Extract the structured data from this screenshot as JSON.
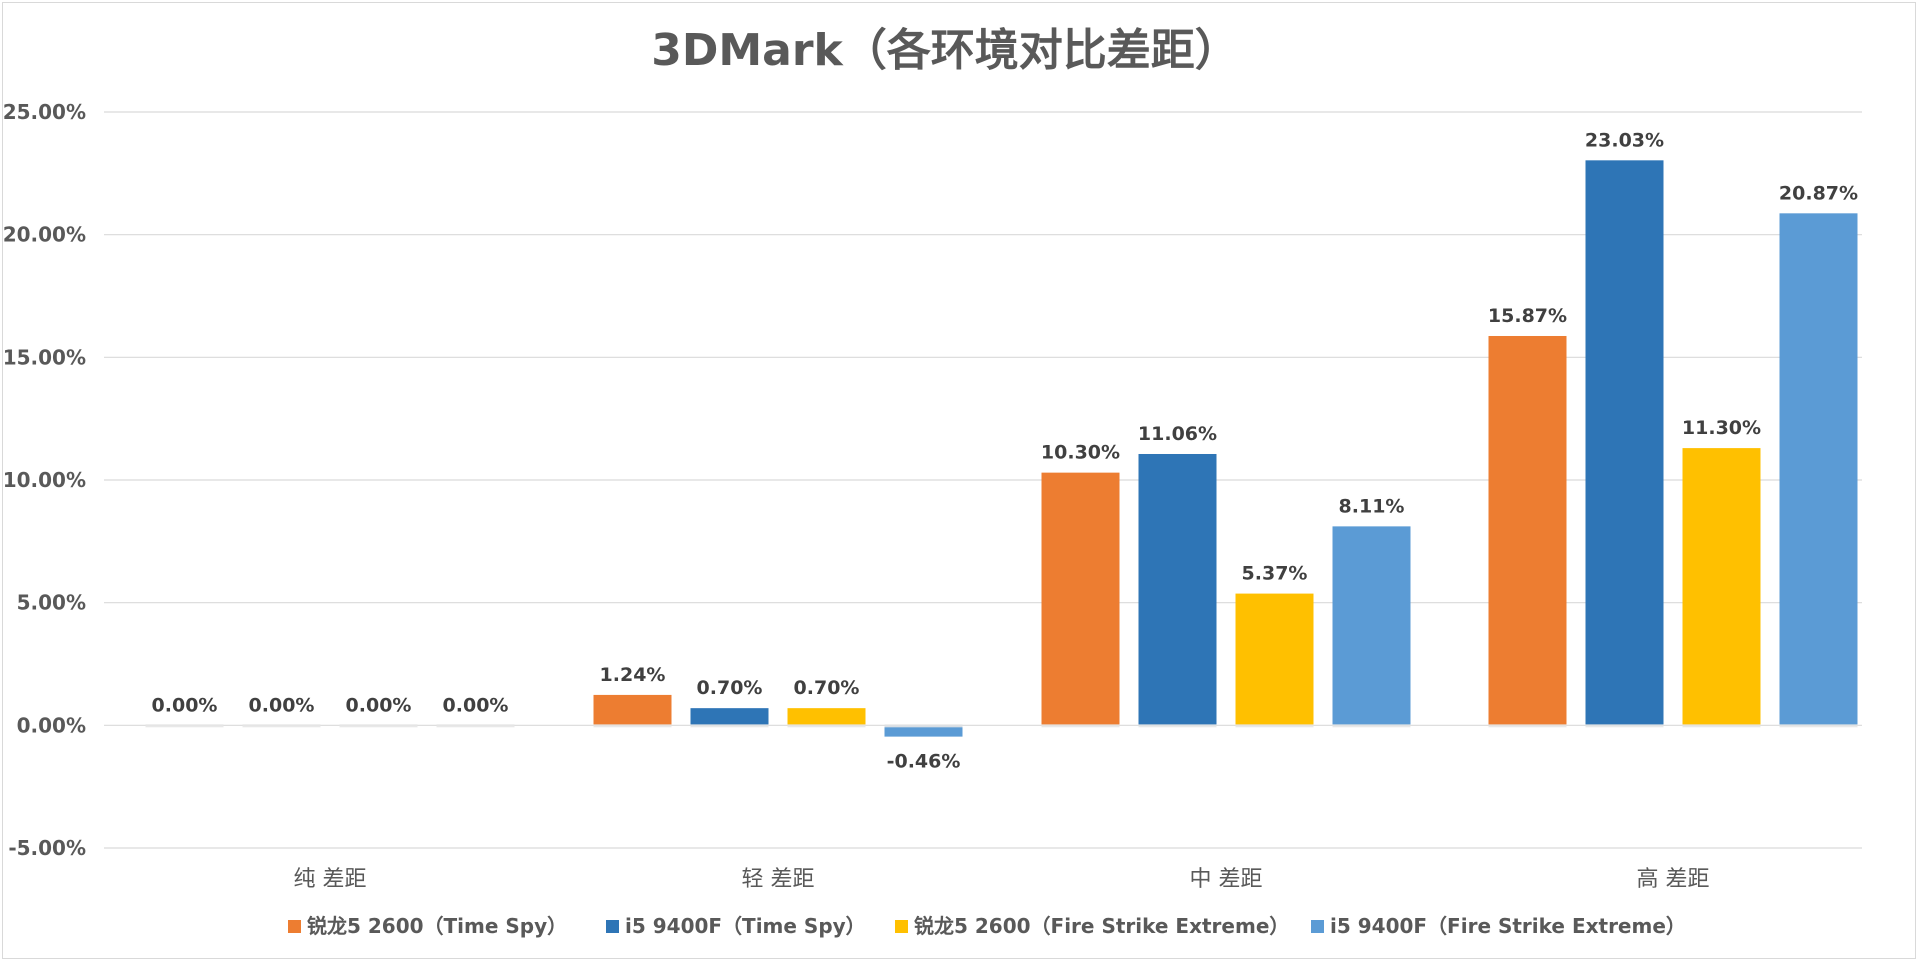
{
  "chart_data": {
    "type": "bar",
    "title": "3DMark（各环境对比差距）",
    "xlabel": "",
    "ylabel": "",
    "categories": [
      "纯 差距",
      "轻 差距",
      "中 差距",
      "高 差距"
    ],
    "series": [
      {
        "name": "锐龙5 2600（Time Spy）",
        "color": "#ED7D31",
        "values": [
          0.0,
          1.24,
          10.3,
          15.87
        ],
        "labels": [
          "0.00%",
          "1.24%",
          "10.30%",
          "15.87%"
        ]
      },
      {
        "name": "i5 9400F（Time Spy）",
        "color": "#2E75B6",
        "values": [
          0.0,
          0.7,
          11.06,
          23.03
        ],
        "labels": [
          "0.00%",
          "0.70%",
          "11.06%",
          "23.03%"
        ]
      },
      {
        "name": "锐龙5 2600（Fire Strike Extreme）",
        "color": "#FFC000",
        "values": [
          0.0,
          0.7,
          5.37,
          11.3
        ],
        "labels": [
          "0.00%",
          "0.70%",
          "5.37%",
          "11.30%"
        ]
      },
      {
        "name": "i5 9400F（Fire Strike Extreme）",
        "color": "#5B9BD5",
        "values": [
          0.0,
          -0.46,
          8.11,
          20.87
        ],
        "labels": [
          "0.00%",
          "-0.46%",
          "8.11%",
          "20.87%"
        ]
      }
    ],
    "ylim": [
      -5,
      25
    ],
    "yticks": [
      25,
      20,
      15,
      10,
      5,
      0,
      -5
    ],
    "ytick_labels": [
      "25.00%",
      "20.00%",
      "15.00%",
      "10.00%",
      "5.00%",
      "0.00%",
      "-5.00%"
    ],
    "grid": true,
    "legend_position": "bottom"
  }
}
